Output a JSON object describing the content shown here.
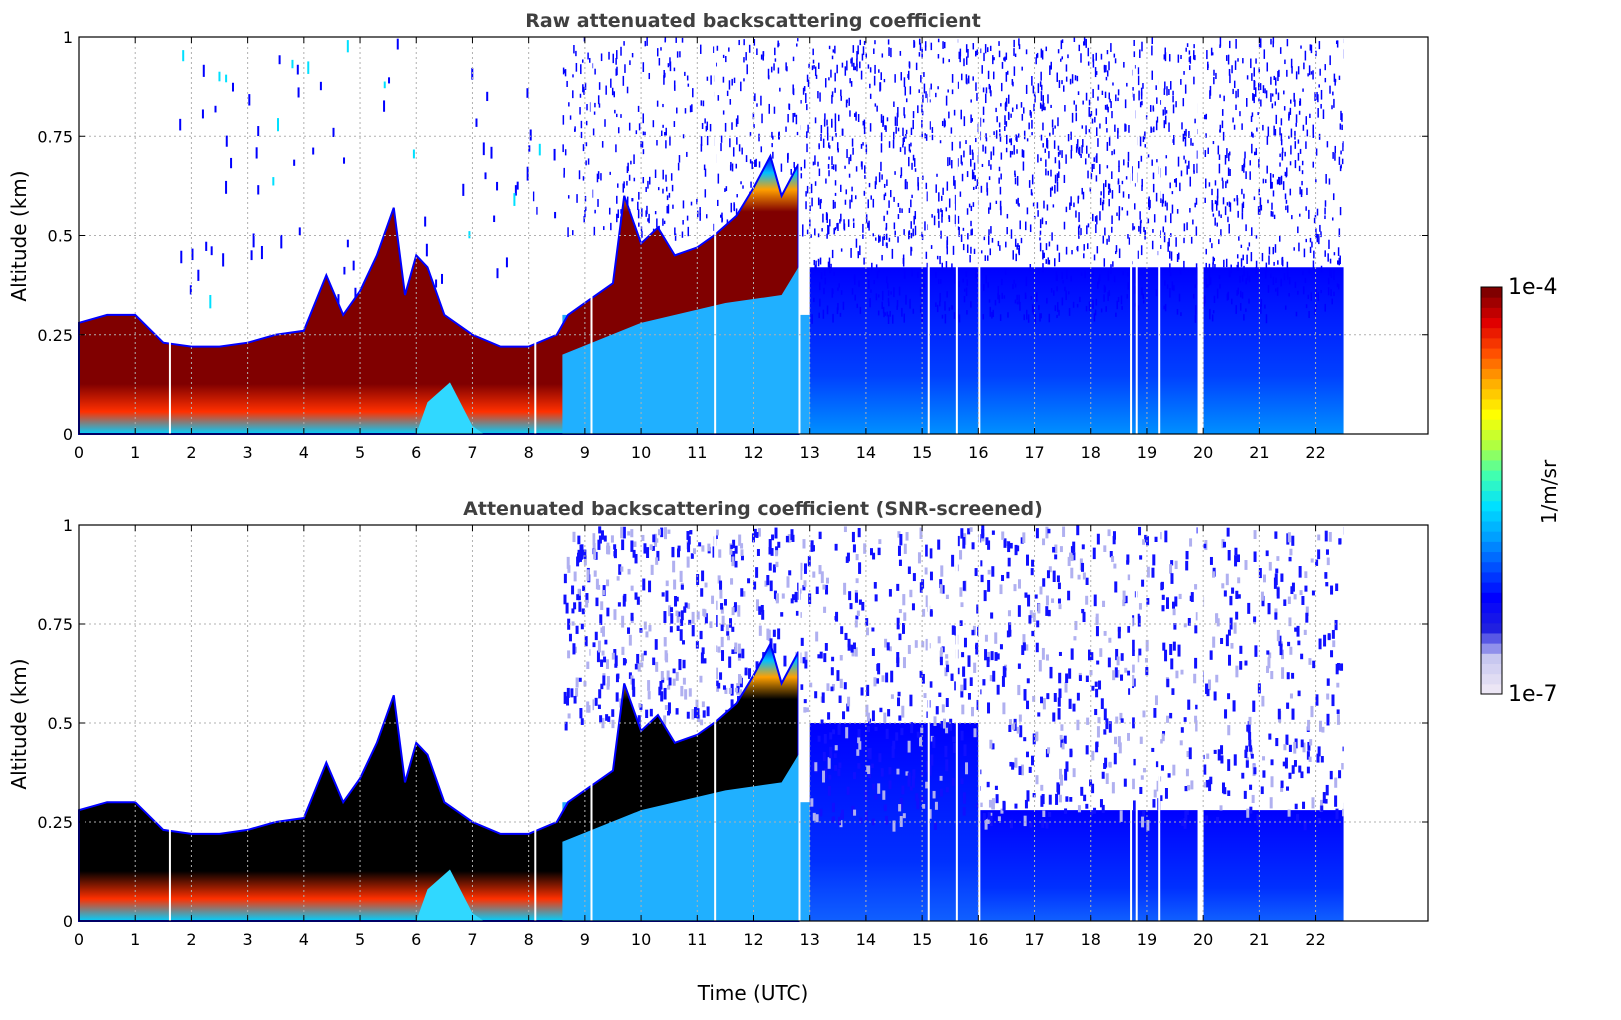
{
  "chart_data": [
    {
      "type": "heatmap",
      "title": "Raw attenuated backscattering coefficient",
      "xlabel": "",
      "ylabel": "Altitude (km)",
      "xlim": [
        0,
        24
      ],
      "ylim": [
        0,
        1
      ],
      "x_ticks": [
        "0",
        "1",
        "2",
        "3",
        "4",
        "5",
        "6",
        "7",
        "8",
        "9",
        "10",
        "11",
        "12",
        "13",
        "14",
        "15",
        "16",
        "17",
        "18",
        "19",
        "20",
        "21",
        "22"
      ],
      "y_ticks": [
        "0",
        "0.25",
        "0.5",
        "0.75",
        "1"
      ],
      "grid": true,
      "data_end_x": 22.5,
      "boundary_layer_top_km": [
        [
          0,
          0.28
        ],
        [
          0.5,
          0.3
        ],
        [
          1,
          0.3
        ],
        [
          1.5,
          0.23
        ],
        [
          2,
          0.22
        ],
        [
          2.5,
          0.22
        ],
        [
          3,
          0.23
        ],
        [
          3.5,
          0.25
        ],
        [
          4,
          0.26
        ],
        [
          4.4,
          0.4
        ],
        [
          4.7,
          0.3
        ],
        [
          5,
          0.36
        ],
        [
          5.3,
          0.45
        ],
        [
          5.6,
          0.57
        ],
        [
          5.8,
          0.35
        ],
        [
          6,
          0.45
        ],
        [
          6.2,
          0.42
        ],
        [
          6.5,
          0.3
        ],
        [
          7,
          0.25
        ],
        [
          7.5,
          0.22
        ],
        [
          8,
          0.22
        ],
        [
          8.5,
          0.25
        ],
        [
          8.7,
          0.3
        ],
        [
          9,
          0.33
        ],
        [
          9.5,
          0.38
        ],
        [
          9.7,
          0.6
        ],
        [
          10,
          0.48
        ],
        [
          10.3,
          0.52
        ],
        [
          10.6,
          0.45
        ],
        [
          11,
          0.47
        ],
        [
          11.3,
          0.5
        ],
        [
          11.7,
          0.55
        ],
        [
          12,
          0.62
        ],
        [
          12.3,
          0.7
        ],
        [
          12.5,
          0.6
        ],
        [
          12.8,
          0.68
        ]
      ]
    },
    {
      "type": "heatmap",
      "title": "Attenuated backscattering coefficient (SNR-screened)",
      "xlabel": "Time (UTC)",
      "ylabel": "Altitude (km)",
      "xlim": [
        0,
        24
      ],
      "ylim": [
        0,
        1
      ],
      "x_ticks": [
        "0",
        "1",
        "2",
        "3",
        "4",
        "5",
        "6",
        "7",
        "8",
        "9",
        "10",
        "11",
        "12",
        "13",
        "14",
        "15",
        "16",
        "17",
        "18",
        "19",
        "20",
        "21",
        "22"
      ],
      "y_ticks": [
        "0",
        "0.25",
        "0.5",
        "0.75",
        "1"
      ],
      "grid": true,
      "data_end_x": 22.5,
      "screened_layer_top_km": 0.28
    }
  ],
  "colorbar": {
    "label": "1/m/sr",
    "max_label": "1e-4",
    "min_label": "1e-7",
    "colors": [
      "#ece6f5",
      "#c8c8f0",
      "#2020e0",
      "#0000ff",
      "#0050ff",
      "#00a0ff",
      "#00e0ff",
      "#40ffb0",
      "#b0ff40",
      "#ffff00",
      "#ffb000",
      "#ff5000",
      "#e00000",
      "#800000"
    ]
  }
}
